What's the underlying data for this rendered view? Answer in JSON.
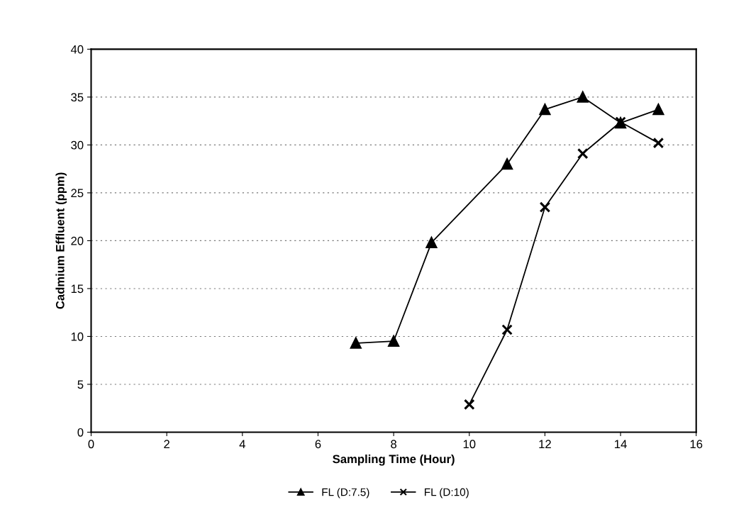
{
  "chart_data": {
    "type": "line",
    "xlabel": "Sampling Time (Hour)",
    "ylabel": "Cadmium Effluent (ppm)",
    "xlim": [
      0,
      16
    ],
    "xticks": [
      0,
      2,
      4,
      6,
      8,
      10,
      12,
      14,
      16
    ],
    "ylim": [
      0,
      40
    ],
    "yticks": [
      0,
      5,
      10,
      15,
      20,
      25,
      30,
      35,
      40
    ],
    "grid": "y",
    "legend": "bottom",
    "series": [
      {
        "name": "FL (D:7.5)",
        "color": "#000000",
        "marker": "triangle",
        "x": [
          7,
          8,
          9,
          11,
          12,
          13,
          14,
          15
        ],
        "values": [
          9.3,
          9.5,
          19.8,
          28.0,
          33.7,
          35.0,
          32.3,
          33.7
        ]
      },
      {
        "name": "FL (D:10)",
        "color": "#000000",
        "marker": "cross",
        "x": [
          10,
          11,
          12,
          13,
          14,
          15
        ],
        "values": [
          2.9,
          10.7,
          23.5,
          29.1,
          32.4,
          30.2
        ]
      }
    ]
  }
}
